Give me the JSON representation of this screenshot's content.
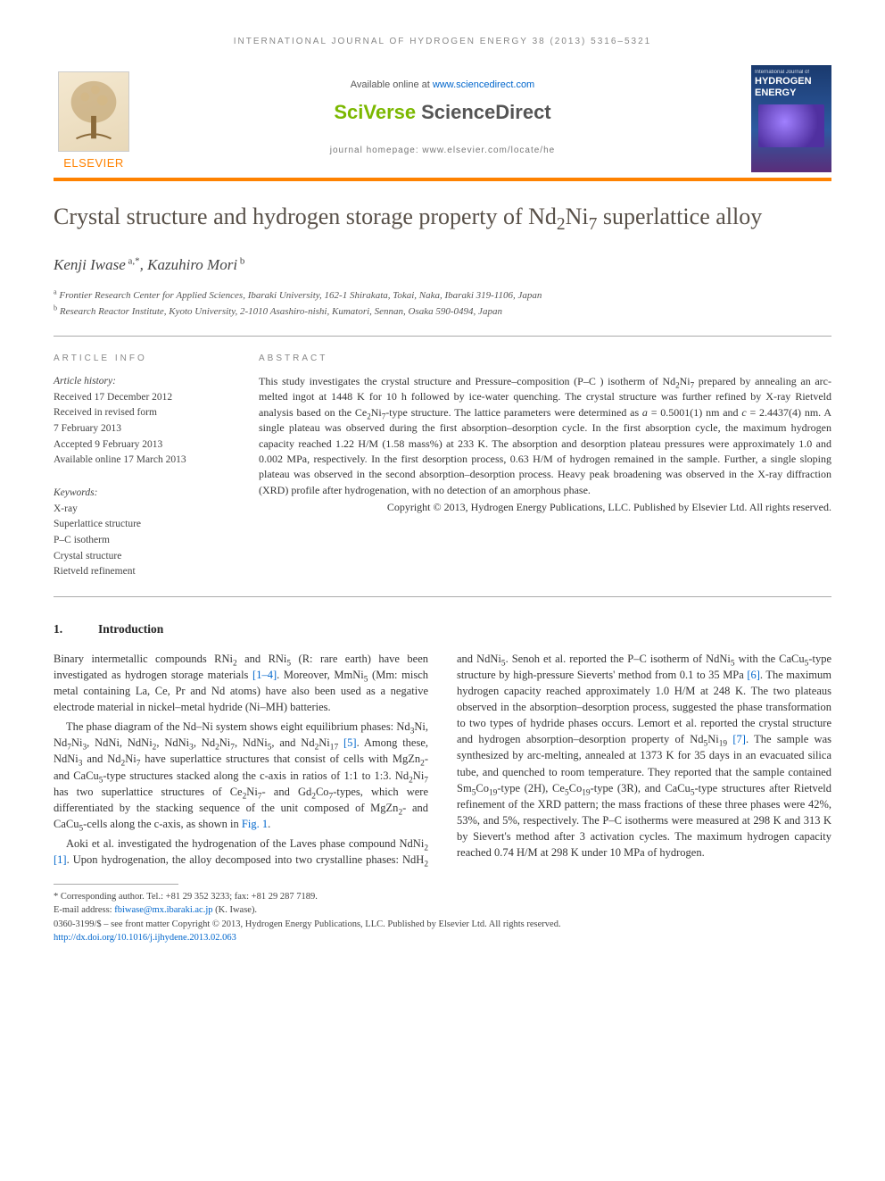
{
  "running_head": "INTERNATIONAL JOURNAL OF HYDROGEN ENERGY 38 (2013) 5316–5321",
  "header": {
    "publisher_logo_text": "ELSEVIER",
    "available_prefix": "Available online at ",
    "available_link": "www.sciencedirect.com",
    "platform_part1": "SciVerse",
    "platform_part2": "ScienceDirect",
    "homepage_label": "journal homepage: www.elsevier.com/locate/he",
    "cover_line1": "International Journal of",
    "cover_line2a": "HYDROGEN",
    "cover_line2b": "ENERGY"
  },
  "title_html": "Crystal structure and hydrogen storage property of Nd<sub>2</sub>Ni<sub>7</sub> superlattice alloy",
  "authors_html": "Kenji Iwase<sup> a,*</sup>, Kazuhiro Mori<sup> b</sup>",
  "affiliations": [
    "Frontier Research Center for Applied Sciences, Ibaraki University, 162-1 Shirakata, Tokai, Naka, Ibaraki 319-1106, Japan",
    "Research Reactor Institute, Kyoto University, 2-1010 Asashiro-nishi, Kumatori, Sennan, Osaka 590-0494, Japan"
  ],
  "affil_markers": [
    "a",
    "b"
  ],
  "article_info": {
    "head": "ARTICLE INFO",
    "history_label": "Article history:",
    "lines": [
      "Received 17 December 2012",
      "Received in revised form",
      "7 February 2013",
      "Accepted 9 February 2013",
      "Available online 17 March 2013"
    ],
    "keywords_label": "Keywords:",
    "keywords": [
      "X-ray",
      "Superlattice structure",
      "P–C isotherm",
      "Crystal structure",
      "Rietveld refinement"
    ]
  },
  "abstract": {
    "head": "ABSTRACT",
    "text_html": "This study investigates the crystal structure and Pressure–composition (P–C ) isotherm of Nd<sub>2</sub>Ni<sub>7</sub> prepared by annealing an arc-melted ingot at 1448 K for 10 h followed by ice-water quenching. The crystal structure was further refined by X-ray Rietveld analysis based on the Ce<sub>2</sub>Ni<sub>7</sub>-type structure. The lattice parameters were determined as <i>a</i> = 0.5001(1) nm and <i>c</i> = 2.4437(4) nm. A single plateau was observed during the first absorption–desorption cycle. In the first absorption cycle, the maximum hydrogen capacity reached 1.22 H/M (1.58 mass%) at 233 K. The absorption and desorption plateau pressures were approximately 1.0 and 0.002 MPa, respectively. In the first desorption process, 0.63 H/M of hydrogen remained in the sample. Further, a single sloping plateau was observed in the second absorption–desorption process. Heavy peak broadening was observed in the X-ray diffraction (XRD) profile after hydrogenation, with no detection of an amorphous phase.",
    "copyright": "Copyright © 2013, Hydrogen Energy Publications, LLC. Published by Elsevier Ltd. All rights reserved."
  },
  "section1": {
    "num": "1.",
    "title": "Introduction"
  },
  "body_paragraphs_html": [
    "Binary intermetallic compounds RNi<sub>2</sub> and RNi<sub>5</sub> (R: rare earth) have been investigated as hydrogen storage materials <a href='#'>[1–4]</a>. Moreover, MmNi<sub>5</sub> (Mm: misch metal containing La, Ce, Pr and Nd atoms) have also been used as a negative electrode material in nickel–metal hydride (Ni–MH) batteries.",
    "The phase diagram of the Nd–Ni system shows eight equilibrium phases: Nd<sub>3</sub>Ni, Nd<sub>7</sub>Ni<sub>3</sub>, NdNi, NdNi<sub>2</sub>, NdNi<sub>3</sub>, Nd<sub>2</sub>Ni<sub>7</sub>, NdNi<sub>5</sub>, and Nd<sub>2</sub>Ni<sub>17</sub> <a href='#'>[5]</a>. Among these, NdNi<sub>3</sub> and Nd<sub>2</sub>Ni<sub>7</sub> have superlattice structures that consist of cells with MgZn<sub>2</sub>- and CaCu<sub>5</sub>-type structures stacked along the c-axis in ratios of 1:1 to 1:3. Nd<sub>2</sub>Ni<sub>7</sub> has two superlattice structures of Ce<sub>2</sub>Ni<sub>7</sub>- and Gd<sub>2</sub>Co<sub>7</sub>-types, which were differentiated by the stacking sequence of the unit composed of MgZn<sub>2</sub>- and CaCu<sub>5</sub>-cells along the c-axis, as shown in <a href='#'>Fig. 1</a>.",
    "Aoki et al. investigated the hydrogenation of the Laves phase compound NdNi<sub>2</sub> <a href='#'>[1]</a>. Upon hydrogenation, the alloy decomposed into two crystalline phases: NdH<sub>2</sub> and NdNi<sub>5</sub>. Senoh et al. reported the P–C isotherm of NdNi<sub>5</sub> with the CaCu<sub>5</sub>-type structure by high-pressure Sieverts' method from 0.1 to 35 MPa <a href='#'>[6]</a>. The maximum hydrogen capacity reached approximately 1.0 H/M at 248 K. The two plateaus observed in the absorption–desorption process, suggested the phase transformation to two types of hydride phases occurs. Lemort et al. reported the crystal structure and hydrogen absorption–desorption property of Nd<sub>5</sub>Ni<sub>19</sub> <a href='#'>[7]</a>. The sample was synthesized by arc-melting, annealed at 1373 K for 35 days in an evacuated silica tube, and quenched to room temperature. They reported that the sample contained Sm<sub>5</sub>Co<sub>19</sub>-type (2H), Ce<sub>5</sub>Co<sub>19</sub>-type (3R), and CaCu<sub>5</sub>-type structures after Rietveld refinement of the XRD pattern; the mass fractions of these three phases were 42%, 53%, and 5%, respectively. The P–C isotherms were measured at 298 K and 313 K by Sievert's method after 3 activation cycles. The maximum hydrogen capacity reached 0.74 H/M at 298 K under 10 MPa of hydrogen."
  ],
  "footnote": {
    "corr": "* Corresponding author. Tel.: +81 29 352 3233; fax: +81 29 287 7189.",
    "email_label": "E-mail address: ",
    "email": "fbiwase@mx.ibaraki.ac.jp",
    "email_suffix": " (K. Iwase).",
    "issn_line": "0360-3199/$ – see front matter Copyright © 2013, Hydrogen Energy Publications, LLC. Published by Elsevier Ltd. All rights reserved.",
    "doi": "http://dx.doi.org/10.1016/j.ijhydene.2013.02.063"
  },
  "colors": {
    "orange": "#ff8200",
    "link": "#0066cc",
    "title": "#585048",
    "green": "#7bb800"
  }
}
